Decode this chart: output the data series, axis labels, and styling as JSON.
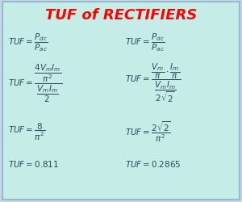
{
  "title": "TUF of RECTIFIERS",
  "title_color": "#ff0000",
  "bg_color": "#c5ece6",
  "border_color": "#9ab8cc",
  "text_color": "#2a4a5a",
  "fig_bg": "#c5d8e8",
  "font_size": 7.5
}
